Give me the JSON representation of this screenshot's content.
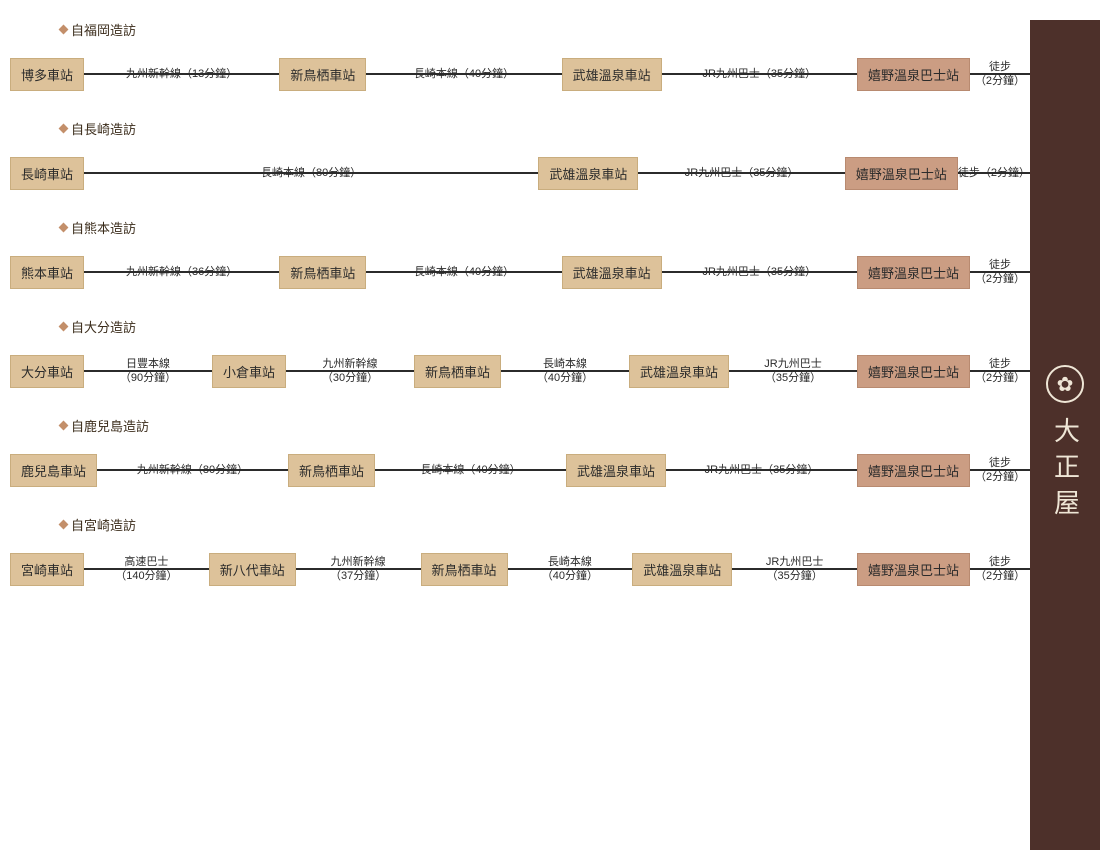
{
  "sidebar": {
    "brand": "大正屋",
    "crest": "✿"
  },
  "colors": {
    "station_bg": "#ddc29a",
    "bus_bg": "#cb9d83",
    "line": "#2b2b2b",
    "sidebar_bg": "#4d302a",
    "sidebar_fg": "#efe6d6",
    "bullet": "#c38f6a"
  },
  "routes": [
    {
      "title": "自福岡造訪",
      "stops": [
        {
          "label": "博多車站",
          "kind": "station"
        },
        {
          "label": "新鳥栖車站",
          "kind": "station"
        },
        {
          "label": "武雄溫泉車站",
          "kind": "station"
        },
        {
          "label": "嬉野溫泉巴士站",
          "kind": "bus"
        }
      ],
      "segments": [
        "九州新幹線（13分鐘）",
        "長崎本線（40分鐘）",
        "JR九州巴士（35分鐘）",
        "徒步\n（2分鐘）"
      ]
    },
    {
      "title": "自長崎造訪",
      "stops": [
        {
          "label": "長崎車站",
          "kind": "station"
        },
        {
          "label": "武雄溫泉車站",
          "kind": "station"
        },
        {
          "label": "嬉野溫泉巴士站",
          "kind": "bus"
        }
      ],
      "segments": [
        "長崎本線（80分鐘）",
        "JR九州巴士（35分鐘）",
        "徒步（2分鐘）"
      ]
    },
    {
      "title": "自熊本造訪",
      "stops": [
        {
          "label": "熊本車站",
          "kind": "station"
        },
        {
          "label": "新鳥栖車站",
          "kind": "station"
        },
        {
          "label": "武雄溫泉車站",
          "kind": "station"
        },
        {
          "label": "嬉野溫泉巴士站",
          "kind": "bus"
        }
      ],
      "segments": [
        "九州新幹線（36分鐘）",
        "長崎本線（40分鐘）",
        "JR九州巴士（35分鐘）",
        "徒步\n（2分鐘）"
      ]
    },
    {
      "title": "自大分造訪",
      "stops": [
        {
          "label": "大分車站",
          "kind": "station"
        },
        {
          "label": "小倉車站",
          "kind": "station"
        },
        {
          "label": "新鳥栖車站",
          "kind": "station"
        },
        {
          "label": "武雄溫泉車站",
          "kind": "station"
        },
        {
          "label": "嬉野溫泉巴士站",
          "kind": "bus"
        }
      ],
      "segments": [
        "日豐本線\n（90分鐘）",
        "九州新幹線\n（30分鐘）",
        "長崎本線\n（40分鐘）",
        "JR九州巴士\n（35分鐘）",
        "徒步\n（2分鐘）"
      ]
    },
    {
      "title": "自鹿兒島造訪",
      "stops": [
        {
          "label": "鹿兒島車站",
          "kind": "station"
        },
        {
          "label": "新鳥栖車站",
          "kind": "station"
        },
        {
          "label": "武雄溫泉車站",
          "kind": "station"
        },
        {
          "label": "嬉野溫泉巴士站",
          "kind": "bus"
        }
      ],
      "segments": [
        "九州新幹線（80分鐘）",
        "長崎本線（40分鐘）",
        "JR九州巴士（35分鐘）",
        "徒步\n（2分鐘）"
      ]
    },
    {
      "title": "自宮崎造訪",
      "stops": [
        {
          "label": "宮崎車站",
          "kind": "station"
        },
        {
          "label": "新八代車站",
          "kind": "station"
        },
        {
          "label": "新鳥栖車站",
          "kind": "station"
        },
        {
          "label": "武雄溫泉車站",
          "kind": "station"
        },
        {
          "label": "嬉野溫泉巴士站",
          "kind": "bus"
        }
      ],
      "segments": [
        "高速巴士\n（140分鐘）",
        "九州新幹線\n（37分鐘）",
        "長崎本線\n（40分鐘）",
        "JR九州巴士\n（35分鐘）",
        "徒步\n（2分鐘）"
      ]
    }
  ]
}
